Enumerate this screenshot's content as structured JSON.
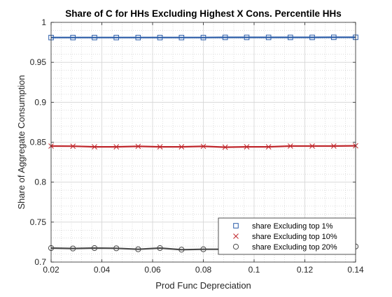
{
  "chart_data": {
    "type": "line",
    "title": "Share of C for HHs Excluding Highest X Cons. Percentile HHs",
    "xlabel": "Prod Func Depreciation",
    "ylabel": "Share of Aggregate Consumption",
    "xlim": [
      0.02,
      0.14
    ],
    "ylim": [
      0.7,
      1.0
    ],
    "xticks": [
      "0.02",
      "0.04",
      "0.06",
      "0.08",
      "0.1",
      "0.12",
      "0.14"
    ],
    "yticks": [
      "0.7",
      "0.75",
      "0.8",
      "0.85",
      "0.9",
      "0.95",
      "1"
    ],
    "grid": true,
    "minor_grid": true,
    "legend_position": "bottom-right",
    "x": [
      0.02,
      0.0286,
      0.0371,
      0.0457,
      0.0543,
      0.0629,
      0.0714,
      0.08,
      0.0886,
      0.0971,
      0.1057,
      0.1143,
      0.1229,
      0.1314,
      0.14
    ],
    "series": [
      {
        "name": "share Excluding top 1%",
        "color": "#2a5ca8",
        "marker": "square",
        "values": [
          0.981,
          0.981,
          0.981,
          0.981,
          0.981,
          0.981,
          0.981,
          0.981,
          0.9812,
          0.9812,
          0.9812,
          0.9812,
          0.9812,
          0.9813,
          0.9813
        ]
      },
      {
        "name": "share Excluding top 10%",
        "color": "#c0282d",
        "marker": "x",
        "values": [
          0.8452,
          0.845,
          0.8442,
          0.8442,
          0.8448,
          0.8442,
          0.8442,
          0.8448,
          0.8438,
          0.8442,
          0.8442,
          0.8452,
          0.8452,
          0.8452,
          0.8455
        ]
      },
      {
        "name": "share Excluding top 20%",
        "color": "#4a4a4a",
        "marker": "circle",
        "values": [
          0.7175,
          0.717,
          0.7175,
          0.7172,
          0.716,
          0.7175,
          0.7155,
          0.716,
          0.716,
          0.716,
          0.716,
          0.7158,
          0.716,
          0.7165,
          0.7195
        ]
      }
    ]
  }
}
